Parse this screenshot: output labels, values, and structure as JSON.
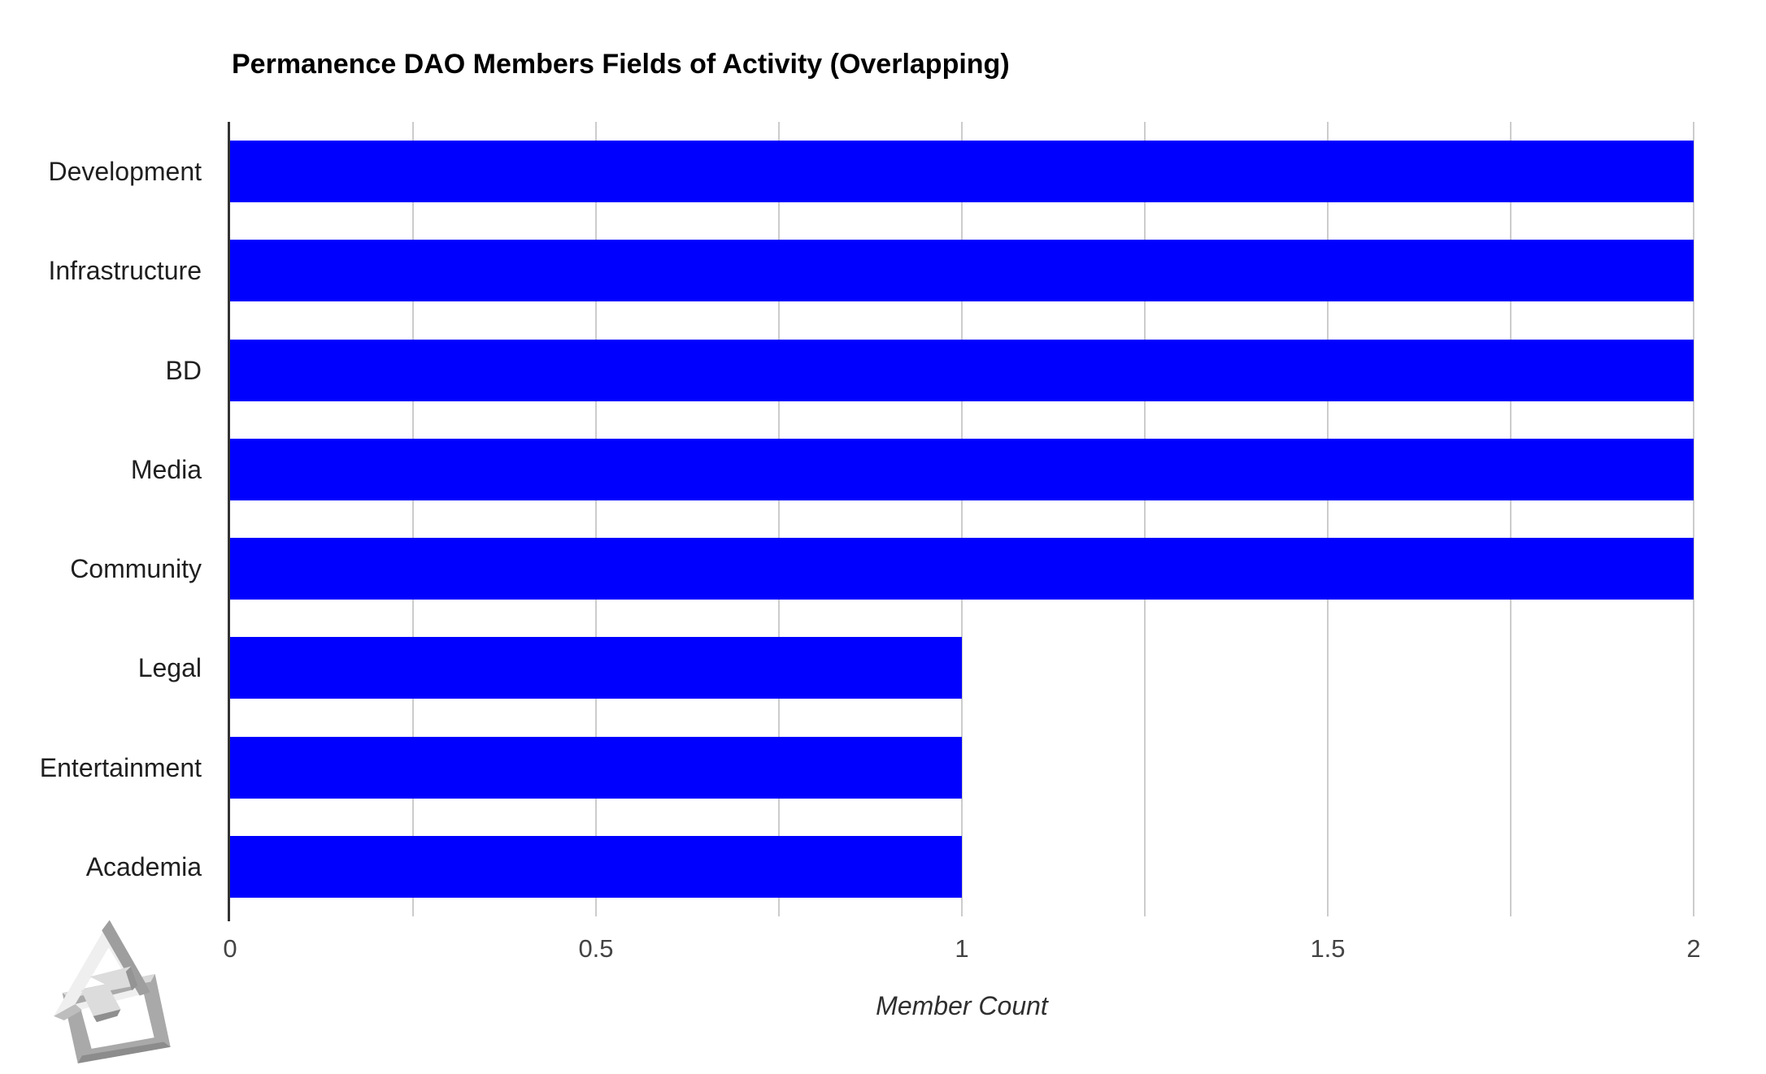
{
  "chart_data": {
    "type": "bar",
    "orientation": "horizontal",
    "title": "Permanence DAO Members Fields of Activity (Overlapping)",
    "categories": [
      "Development",
      "Infrastructure",
      "BD",
      "Media",
      "Community",
      "Legal",
      "Entertainment",
      "Academia"
    ],
    "values": [
      2,
      2,
      2,
      2,
      2,
      1,
      1,
      1
    ],
    "xlabel": "Member Count",
    "xlim": [
      0,
      2
    ],
    "xticks": [
      {
        "value": 0,
        "label": "0"
      },
      {
        "value": 0.5,
        "label": "0.5"
      },
      {
        "value": 1,
        "label": "1"
      },
      {
        "value": 1.5,
        "label": "1.5"
      },
      {
        "value": 2,
        "label": "2"
      }
    ],
    "gridline_step": 0.25,
    "grid": true,
    "legend": "none",
    "colors": {
      "bar": "#0000ff",
      "gridline": "#cccccc",
      "axis": "#333333",
      "tick_text": "#444444",
      "category_text": "#1f1f1f",
      "title_text": "#000000",
      "background": "#ffffff"
    },
    "icons": {
      "logo_icon": "permanence-dao-geometric-knot"
    }
  }
}
